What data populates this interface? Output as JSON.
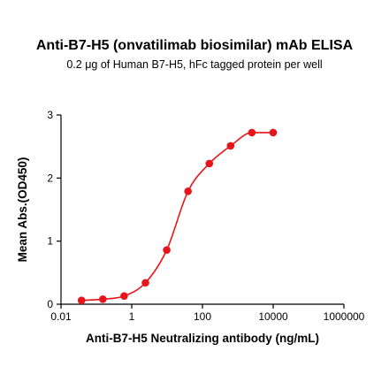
{
  "chart_data": {
    "type": "scatter",
    "title": "Anti-B7-H5 (onvatilimab biosimilar) mAb ELISA",
    "subtitle": "0.2 μg of Human B7-H5, hFc tagged protein per well",
    "xlabel": "Anti-B7-H5 Neutralizing antibody (ng/mL)",
    "ylabel": "Mean Abs.(OD450)",
    "x_scale": "log",
    "xlim": [
      0.01,
      1000000
    ],
    "ylim": [
      0,
      3
    ],
    "x_ticks": [
      0.01,
      1,
      100,
      10000,
      1000000
    ],
    "x_tick_labels": [
      "0.01",
      "1",
      "100",
      "10000",
      "1000000"
    ],
    "y_ticks": [
      0,
      1,
      2,
      3
    ],
    "y_tick_labels": [
      "0",
      "1",
      "2",
      "3"
    ],
    "grid": false,
    "colors": {
      "series": "#e8141b",
      "axis": "#000000"
    },
    "series": [
      {
        "x": [
          0.0381,
          0.1526,
          0.6104,
          2.441,
          9.766,
          39.06,
          156.3,
          625,
          2500,
          10000
        ],
        "y": [
          0.06,
          0.08,
          0.13,
          0.34,
          0.86,
          1.79,
          2.23,
          2.51,
          2.72,
          2.72
        ]
      }
    ]
  }
}
